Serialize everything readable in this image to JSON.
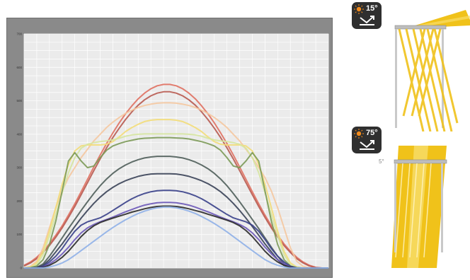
{
  "chart_data": {
    "type": "line",
    "title": "",
    "xlabel": "",
    "ylabel": "",
    "ylim": [
      0,
      700
    ],
    "yticks": [
      "0",
      "100",
      "200",
      "300",
      "400",
      "500",
      "600",
      "700"
    ],
    "x": [
      0,
      1,
      2,
      3,
      4,
      5,
      6,
      7,
      8,
      9,
      10,
      11,
      12,
      13,
      14,
      15,
      16,
      17,
      18,
      19,
      20,
      21,
      22,
      23,
      24,
      25,
      26,
      27,
      28,
      29,
      30,
      31,
      32,
      33,
      34,
      35,
      36,
      37,
      38,
      39,
      40,
      41,
      42,
      43,
      44,
      45,
      46,
      47,
      48
    ],
    "xticks": [
      "",
      "",
      "",
      "",
      "",
      "",
      "",
      "",
      "",
      "",
      "",
      "",
      "",
      ""
    ],
    "grid": true,
    "series": [
      {
        "color": "#e07060",
        "values": [
          8,
          18,
          32,
          50,
          72,
          98,
          126,
          158,
          192,
          228,
          265,
          302,
          338,
          372,
          404,
          434,
          461,
          485,
          506,
          523,
          536,
          545,
          549,
          549,
          545,
          536,
          523,
          506,
          485,
          461,
          434,
          404,
          372,
          338,
          302,
          265,
          228,
          192,
          158,
          126,
          98,
          72,
          50,
          32,
          18,
          8,
          2,
          0,
          0
        ]
      },
      {
        "color": "#b85a50",
        "values": [
          6,
          15,
          28,
          46,
          67,
          92,
          120,
          151,
          184,
          219,
          255,
          291,
          326,
          359,
          390,
          418,
          444,
          467,
          487,
          503,
          515,
          523,
          527,
          527,
          523,
          515,
          503,
          487,
          467,
          444,
          418,
          390,
          359,
          326,
          291,
          255,
          219,
          184,
          151,
          120,
          92,
          67,
          46,
          28,
          15,
          6,
          1,
          0,
          0
        ]
      },
      {
        "color": "#f5c8a0",
        "values": [
          0,
          5,
          20,
          60,
          120,
          180,
          230,
          270,
          300,
          330,
          355,
          380,
          400,
          420,
          436,
          450,
          462,
          472,
          480,
          486,
          490,
          493,
          494,
          494,
          493,
          490,
          486,
          480,
          472,
          462,
          450,
          436,
          420,
          400,
          380,
          355,
          330,
          300,
          270,
          230,
          180,
          120,
          60,
          20,
          5,
          0,
          0,
          0,
          0
        ]
      },
      {
        "color": "#f3dd78",
        "values": [
          0,
          3,
          15,
          50,
          110,
          180,
          250,
          310,
          350,
          365,
          368,
          368,
          368,
          370,
          378,
          392,
          408,
          420,
          430,
          438,
          442,
          444,
          444,
          444,
          442,
          438,
          430,
          420,
          408,
          392,
          378,
          370,
          368,
          368,
          368,
          365,
          350,
          310,
          250,
          180,
          110,
          50,
          15,
          3,
          0,
          0,
          0,
          0,
          0
        ]
      },
      {
        "color": "#d6e6a0",
        "values": [
          0,
          2,
          10,
          40,
          95,
          160,
          225,
          285,
          330,
          358,
          370,
          375,
          378,
          380,
          383,
          388,
          394,
          398,
          400,
          401,
          401,
          401,
          401,
          401,
          401,
          401,
          400,
          398,
          394,
          388,
          383,
          380,
          378,
          375,
          370,
          358,
          330,
          285,
          225,
          160,
          95,
          40,
          10,
          2,
          0,
          0,
          0,
          0,
          0
        ]
      },
      {
        "color": "#7c9a58",
        "values": [
          0,
          1,
          6,
          25,
          70,
          140,
          230,
          320,
          345,
          320,
          300,
          305,
          330,
          352,
          365,
          372,
          378,
          382,
          386,
          388,
          389,
          390,
          390,
          390,
          389,
          388,
          386,
          382,
          378,
          372,
          365,
          352,
          330,
          305,
          300,
          320,
          345,
          320,
          230,
          140,
          70,
          25,
          6,
          1,
          0,
          0,
          0,
          0,
          0
        ]
      },
      {
        "color": "#4f5e5a",
        "values": [
          0,
          0,
          2,
          12,
          35,
          62,
          90,
          118,
          145,
          172,
          198,
          223,
          246,
          266,
          283,
          297,
          308,
          317,
          324,
          329,
          332,
          334,
          334,
          334,
          332,
          329,
          324,
          317,
          308,
          297,
          283,
          266,
          246,
          223,
          198,
          172,
          145,
          118,
          90,
          62,
          35,
          12,
          2,
          0,
          0,
          0,
          0,
          0,
          0
        ]
      },
      {
        "color": "#3a4258",
        "values": [
          0,
          0,
          1,
          8,
          25,
          48,
          72,
          98,
          124,
          149,
          172,
          193,
          212,
          228,
          241,
          252,
          261,
          268,
          274,
          278,
          281,
          282,
          282,
          282,
          281,
          278,
          274,
          268,
          261,
          252,
          241,
          228,
          212,
          193,
          172,
          149,
          124,
          98,
          72,
          48,
          25,
          8,
          1,
          0,
          0,
          0,
          0,
          0,
          0
        ]
      },
      {
        "color": "#38408a",
        "values": [
          0,
          0,
          0,
          5,
          18,
          35,
          58,
          85,
          110,
          128,
          138,
          144,
          150,
          160,
          172,
          184,
          196,
          207,
          216,
          223,
          228,
          231,
          232,
          232,
          231,
          228,
          223,
          216,
          207,
          196,
          184,
          172,
          160,
          150,
          144,
          138,
          128,
          110,
          85,
          58,
          35,
          18,
          5,
          0,
          0,
          0,
          0,
          0,
          0
        ]
      },
      {
        "color": "#6b58b8",
        "values": [
          0,
          0,
          0,
          3,
          12,
          25,
          42,
          62,
          85,
          105,
          120,
          130,
          138,
          145,
          152,
          160,
          168,
          175,
          182,
          188,
          192,
          195,
          196,
          196,
          195,
          192,
          188,
          182,
          175,
          168,
          160,
          152,
          145,
          138,
          130,
          120,
          105,
          85,
          62,
          42,
          25,
          12,
          3,
          0,
          0,
          0,
          0,
          0,
          0
        ]
      },
      {
        "color": "#2a2a2a",
        "values": [
          0,
          0,
          0,
          2,
          8,
          18,
          32,
          50,
          72,
          94,
          112,
          126,
          136,
          143,
          149,
          155,
          161,
          167,
          172,
          177,
          181,
          184,
          185,
          185,
          184,
          181,
          177,
          172,
          167,
          161,
          155,
          149,
          143,
          136,
          126,
          112,
          94,
          72,
          50,
          32,
          18,
          8,
          2,
          0,
          0,
          0,
          0,
          0,
          0
        ]
      },
      {
        "color": "#8fb0e8",
        "values": [
          0,
          0,
          0,
          0,
          3,
          8,
          15,
          25,
          38,
          52,
          66,
          80,
          94,
          108,
          121,
          133,
          144,
          154,
          163,
          170,
          176,
          180,
          182,
          182,
          180,
          176,
          170,
          163,
          154,
          144,
          133,
          121,
          108,
          94,
          80,
          66,
          52,
          38,
          25,
          15,
          8,
          3,
          0,
          0,
          0,
          0,
          0,
          0,
          0
        ]
      }
    ]
  },
  "badges": [
    {
      "angle": "15°",
      "sun_icon": "sun-icon",
      "arrow_icon": "reflect-arrow-icon"
    },
    {
      "angle": "75°",
      "sun_icon": "sun-icon",
      "arrow_icon": "reflect-arrow-icon"
    }
  ],
  "lower_panel_label": "5°",
  "colors": {
    "beam": "#f0c21a",
    "beam_light": "#f8dd6a",
    "frame": "#9a9a9a",
    "badge_bg": "#2f2f2f",
    "sun": "#f08a1c"
  }
}
